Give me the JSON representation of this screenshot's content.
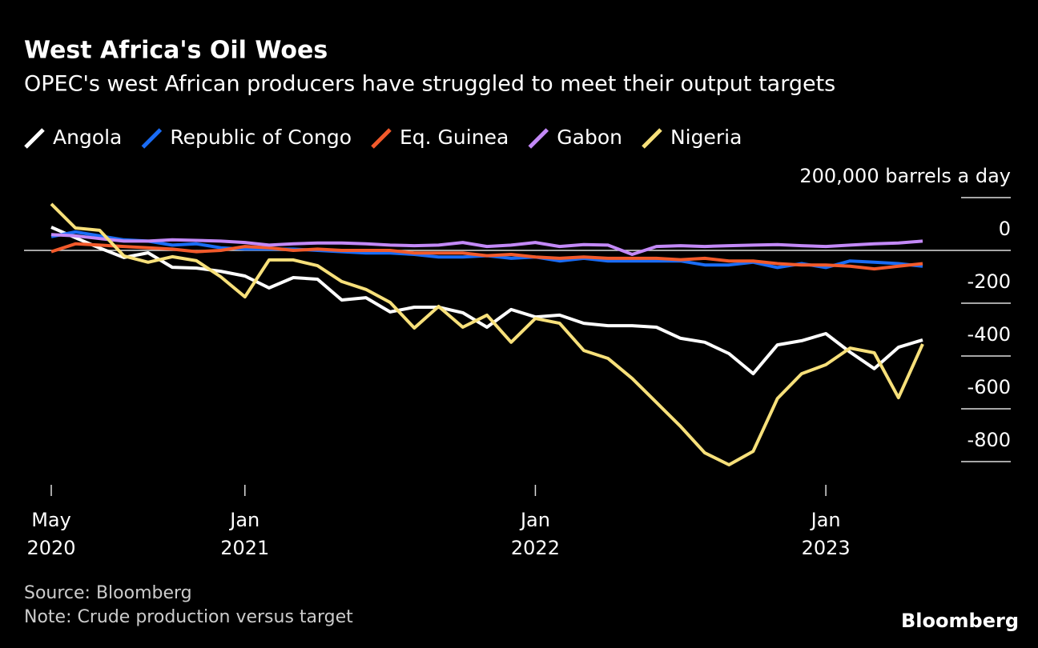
{
  "chart_data": {
    "type": "line",
    "title": "West Africa's Oil Woes",
    "subtitle": "OPEC's west African producers have struggled to meet their output targets",
    "source": "Source: Bloomberg",
    "note": "Note: Crude production versus target",
    "brand": "Bloomberg",
    "x": [
      "2020-05",
      "2020-06",
      "2020-07",
      "2020-08",
      "2020-09",
      "2020-10",
      "2020-11",
      "2020-12",
      "2021-01",
      "2021-02",
      "2021-03",
      "2021-04",
      "2021-05",
      "2021-06",
      "2021-07",
      "2021-08",
      "2021-09",
      "2021-10",
      "2021-11",
      "2021-12",
      "2022-01",
      "2022-02",
      "2022-03",
      "2022-04",
      "2022-05",
      "2022-06",
      "2022-07",
      "2022-08",
      "2022-09",
      "2022-10",
      "2022-11",
      "2022-12",
      "2023-01",
      "2023-02",
      "2023-03",
      "2023-04",
      "2023-05"
    ],
    "xticks": [
      {
        "value": "2020-05",
        "label": [
          "May",
          "2020"
        ]
      },
      {
        "value": "2021-01",
        "label": [
          "Jan",
          "2021"
        ]
      },
      {
        "value": "2022-01",
        "label": [
          "Jan",
          "2022"
        ]
      },
      {
        "value": "2023-01",
        "label": [
          "Jan",
          "2023"
        ]
      }
    ],
    "ylim": [
      -850,
      200
    ],
    "yticks": [
      {
        "value": 200,
        "label": "200,000 barrels a day"
      },
      0,
      -200,
      -400,
      -600,
      -800
    ],
    "series": [
      {
        "name": "Angola",
        "color": "#ffffff",
        "values": [
          88,
          48,
          9,
          -27,
          -9,
          -64,
          -67,
          -79,
          -97,
          -142,
          -103,
          -109,
          -188,
          -179,
          -233,
          -215,
          -215,
          -236,
          -291,
          -224,
          -252,
          -245,
          -276,
          -285,
          -285,
          -291,
          -333,
          -348,
          -391,
          -467,
          -358,
          -342,
          -315,
          -385,
          -448,
          -367,
          -339
        ]
      },
      {
        "name": "Republic of Congo",
        "color": "#1a6cf5",
        "values": [
          52,
          70,
          55,
          40,
          35,
          20,
          25,
          10,
          5,
          5,
          5,
          0,
          -5,
          -10,
          -10,
          -15,
          -25,
          -25,
          -20,
          -30,
          -25,
          -40,
          -30,
          -40,
          -40,
          -40,
          -40,
          -55,
          -55,
          -45,
          -65,
          -50,
          -65,
          -40,
          -45,
          -50,
          -60
        ]
      },
      {
        "name": "Eq. Guinea",
        "color": "#f25a2b",
        "values": [
          -5,
          25,
          20,
          15,
          10,
          5,
          -5,
          0,
          15,
          10,
          0,
          5,
          0,
          0,
          0,
          -10,
          -10,
          -10,
          -20,
          -15,
          -25,
          -30,
          -25,
          -30,
          -30,
          -30,
          -35,
          -30,
          -40,
          -40,
          -50,
          -55,
          -55,
          -60,
          -70,
          -60,
          -50
        ]
      },
      {
        "name": "Gabon",
        "color": "#c389f7",
        "values": [
          60,
          55,
          45,
          35,
          35,
          40,
          38,
          35,
          30,
          20,
          25,
          28,
          28,
          25,
          20,
          18,
          20,
          30,
          15,
          20,
          30,
          15,
          22,
          20,
          -15,
          15,
          18,
          15,
          18,
          20,
          22,
          18,
          15,
          20,
          25,
          28,
          35
        ]
      },
      {
        "name": "Nigeria",
        "color": "#f7e07a",
        "values": [
          176,
          85,
          76,
          -21,
          -45,
          -24,
          -39,
          -100,
          -176,
          -36,
          -36,
          -58,
          -118,
          -148,
          -197,
          -294,
          -212,
          -291,
          -245,
          -348,
          -258,
          -276,
          -379,
          -409,
          -485,
          -576,
          -667,
          -767,
          -812,
          -761,
          -561,
          -467,
          -433,
          -370,
          -388,
          -558,
          -355
        ]
      }
    ]
  }
}
